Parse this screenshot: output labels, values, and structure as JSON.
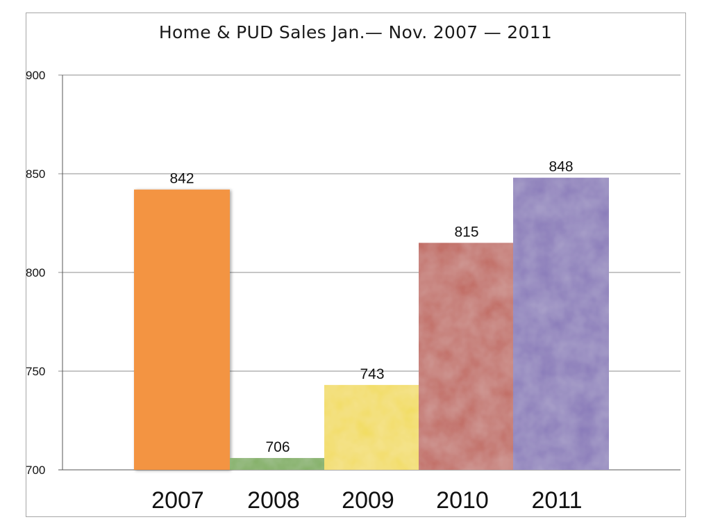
{
  "chart_data": {
    "type": "bar",
    "title": "Home & PUD Sales Jan.— Nov. 2007 — 2011",
    "categories": [
      "2007",
      "2008",
      "2009",
      "2010",
      "2011"
    ],
    "values": [
      842,
      706,
      743,
      815,
      848
    ],
    "data_labels": [
      "842",
      "706",
      "743",
      "815",
      "848"
    ],
    "bar_colors": [
      "#f39443",
      "#7fae5e",
      "#f2dc5a",
      "#c0675e",
      "#8677b8"
    ],
    "ylim": [
      700,
      900
    ],
    "yticks": [
      700,
      750,
      800,
      850,
      900
    ],
    "ytick_labels": [
      "700",
      "750",
      "800",
      "850",
      "900"
    ],
    "xlabel": "",
    "ylabel": "",
    "grid": true,
    "legend": "none"
  }
}
